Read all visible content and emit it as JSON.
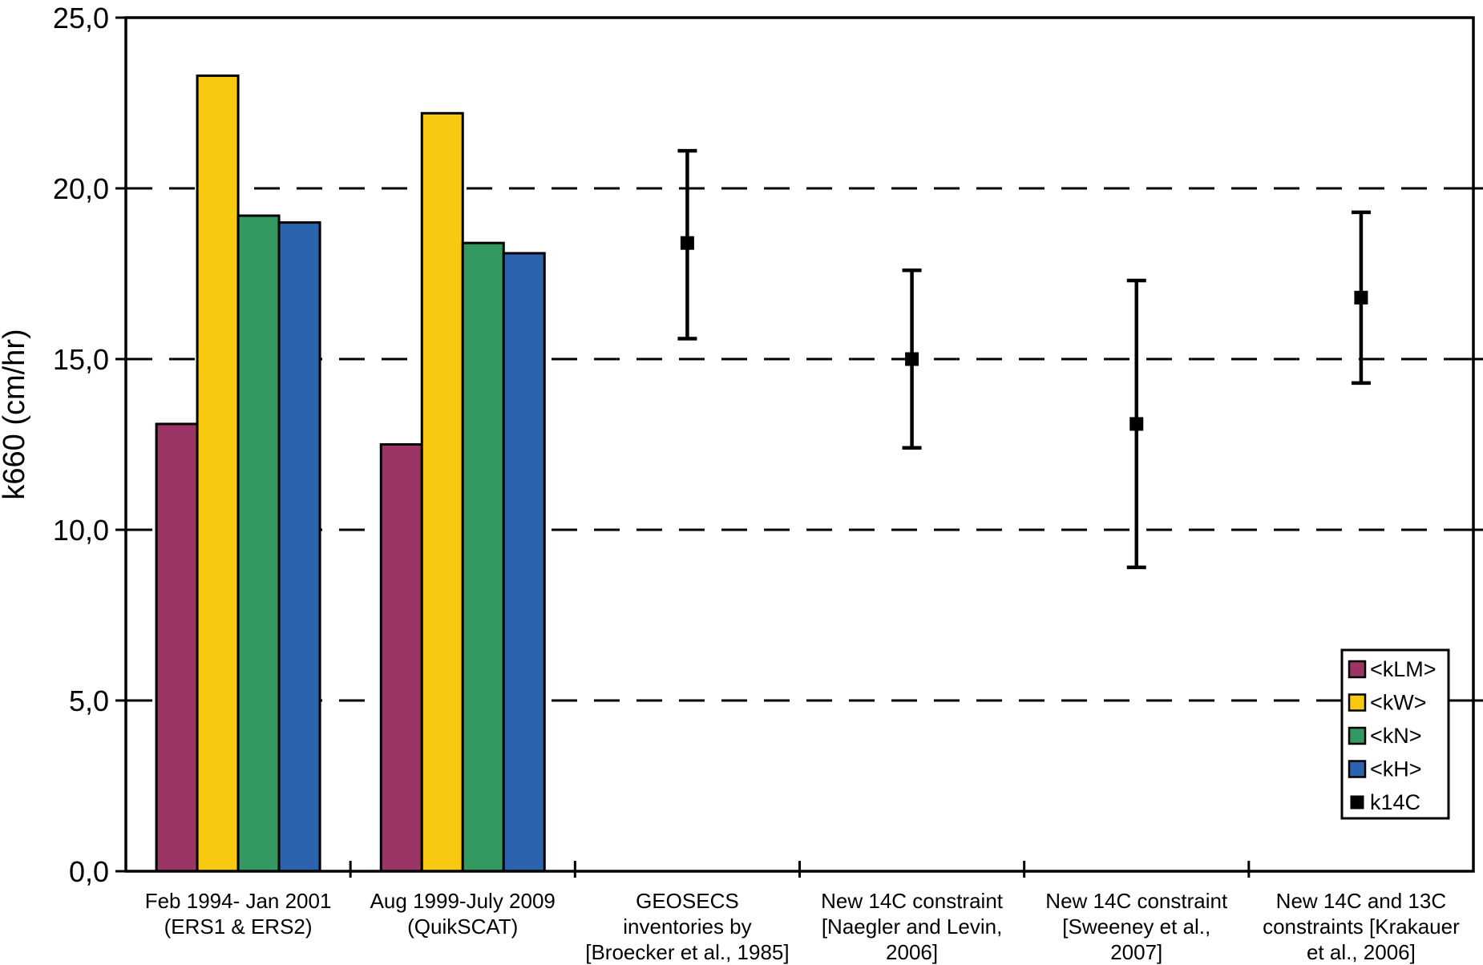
{
  "chart_data": {
    "type": "bar",
    "title": "",
    "xlabel": "",
    "ylabel": "k660 (cm/hr)",
    "ylim": [
      0,
      25
    ],
    "decimal_style": "comma",
    "yticks": [
      {
        "value": 0,
        "label": "0,0"
      },
      {
        "value": 5,
        "label": "5,0"
      },
      {
        "value": 10,
        "label": "10,0"
      },
      {
        "value": 15,
        "label": "15,0"
      },
      {
        "value": 20,
        "label": "20,0"
      },
      {
        "value": 25,
        "label": "25,0"
      }
    ],
    "gridlines": {
      "values": [
        5,
        10,
        15,
        20
      ],
      "style": "dashed",
      "color": "#000000"
    },
    "categories": [
      {
        "id": "ers",
        "lines": [
          "Feb 1994- Jan 2001",
          "(ERS1 & ERS2)"
        ]
      },
      {
        "id": "quikscat",
        "lines": [
          "Aug 1999-July 2009",
          "(QuikSCAT)"
        ]
      },
      {
        "id": "geosecs",
        "lines": [
          "GEOSECS",
          "inventories by",
          "[Broecker et al., 1985]"
        ]
      },
      {
        "id": "naegler",
        "lines": [
          "New 14C constraint",
          "[Naegler and Levin,",
          "2006]"
        ]
      },
      {
        "id": "sweeney",
        "lines": [
          "New 14C constraint",
          "[Sweeney et al.,",
          "2007]"
        ]
      },
      {
        "id": "krakauer",
        "lines": [
          "New 14C and 13C",
          "constraints [Krakauer",
          "et al., 2006]"
        ]
      }
    ],
    "bar_series": [
      {
        "key": "kLM",
        "label": "<kLM>",
        "color": "#9a3566",
        "values": [
          13.1,
          12.5,
          null,
          null,
          null,
          null
        ]
      },
      {
        "key": "kW",
        "label": "<kW>",
        "color": "#f9c911",
        "values": [
          23.3,
          22.2,
          null,
          null,
          null,
          null
        ]
      },
      {
        "key": "kN",
        "label": "<kN>",
        "color": "#339960",
        "values": [
          19.2,
          18.4,
          null,
          null,
          null,
          null
        ]
      },
      {
        "key": "kH",
        "label": "<kH>",
        "color": "#2c63ae",
        "values": [
          19.0,
          18.1,
          null,
          null,
          null,
          null
        ]
      }
    ],
    "error_series": {
      "key": "k14C",
      "label": "k14C",
      "color": "#000000",
      "points": [
        null,
        null,
        {
          "center": 18.4,
          "upper": 21.1,
          "lower": 15.6
        },
        {
          "center": 15.0,
          "upper": 17.6,
          "lower": 12.4
        },
        {
          "center": 13.1,
          "upper": 17.3,
          "lower": 8.9
        },
        {
          "center": 16.8,
          "upper": 19.3,
          "lower": 14.3
        }
      ]
    },
    "legend": {
      "position": "inside-right-bottom",
      "entries": [
        {
          "key": "kLM",
          "label": "<kLM>",
          "swatch": "#9a3566",
          "swatch_border": true
        },
        {
          "key": "kW",
          "label": "<kW>",
          "swatch": "#f9c911",
          "swatch_border": true
        },
        {
          "key": "kN",
          "label": "<kN>",
          "swatch": "#339960",
          "swatch_border": true
        },
        {
          "key": "kH",
          "label": "<kH>",
          "swatch": "#2c63ae",
          "swatch_border": true
        },
        {
          "key": "k14C",
          "label": "k14C",
          "swatch": "#000000",
          "swatch_border": false
        }
      ]
    },
    "axis_color": "#000000",
    "background": "#ffffff"
  }
}
